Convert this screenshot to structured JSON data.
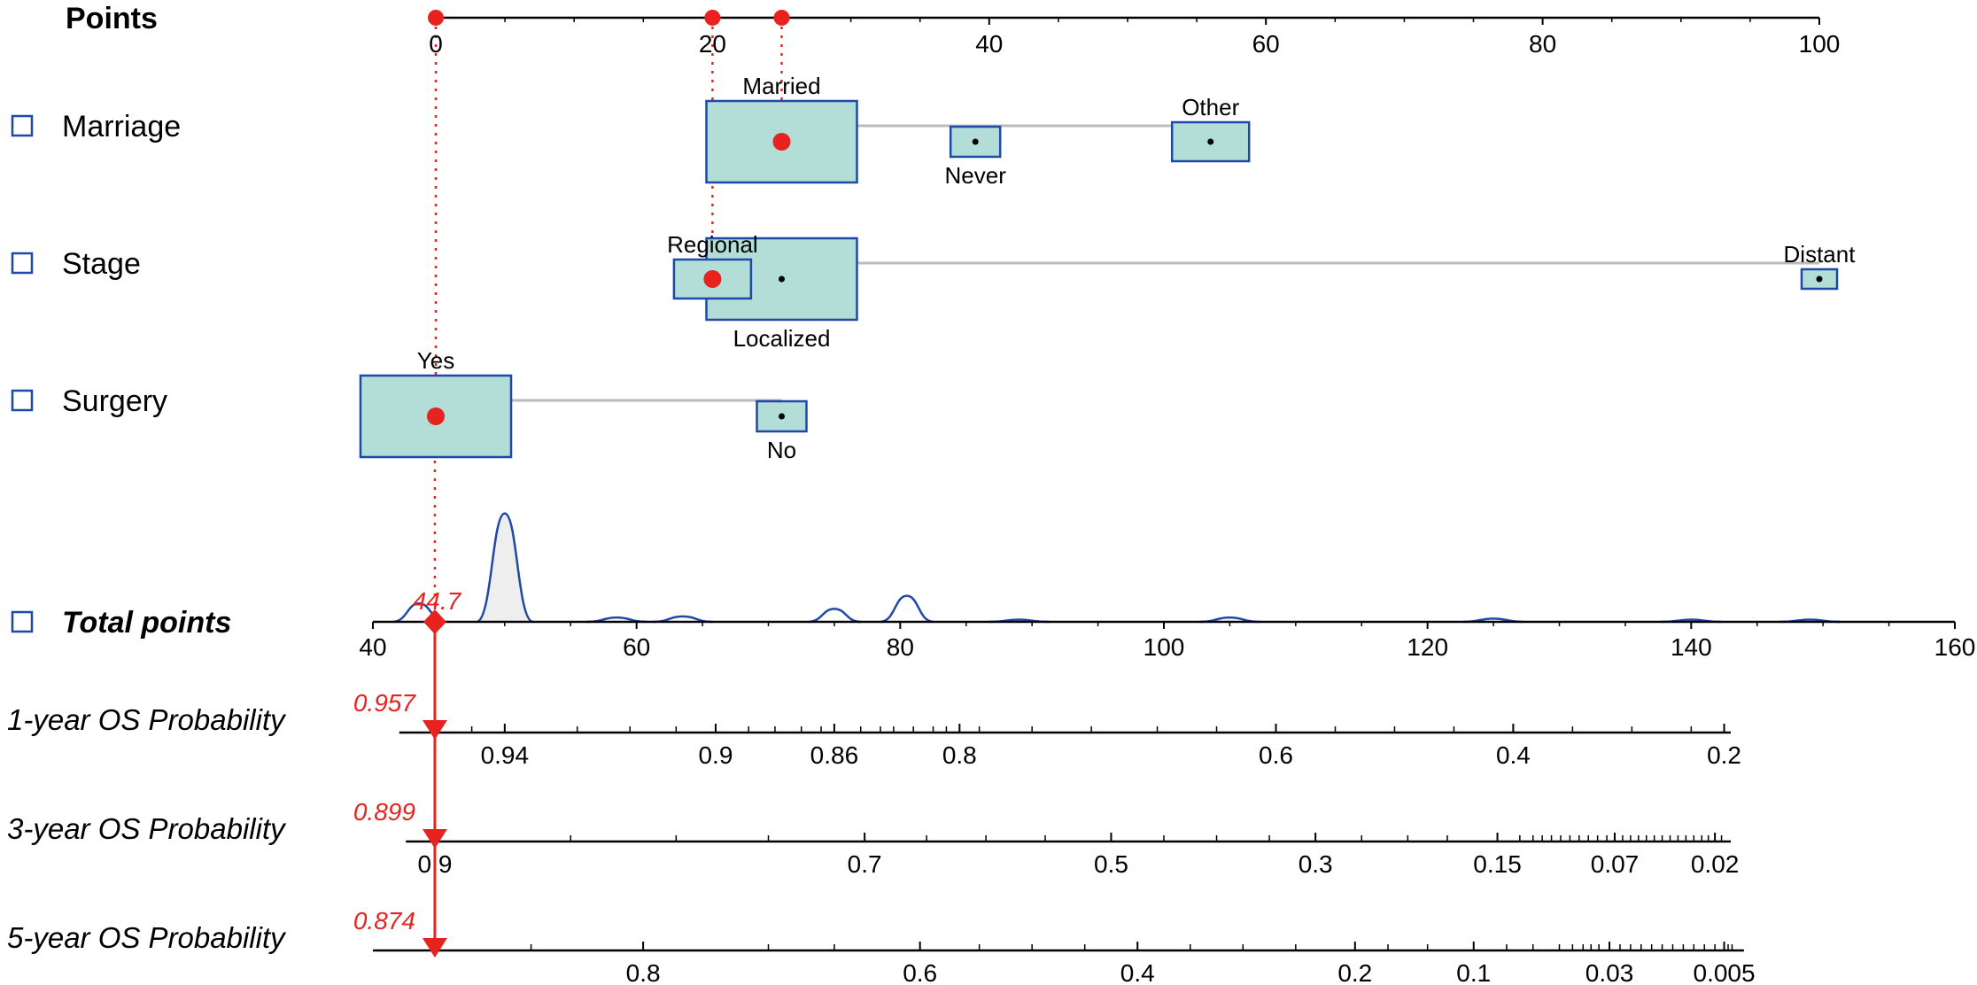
{
  "colors": {
    "box_fill": "#b3ded8",
    "box_stroke": "#1f48a8",
    "marker": "#e8231f",
    "axis": "#000000",
    "connector": "#bbbbbb",
    "density_fill": "#eeeeee",
    "checkbox": "#1f48a8"
  },
  "icons": {
    "row_checkbox": "unchecked-checkbox-icon",
    "selected_point": "red-dot-icon",
    "total_marker": "red-diamond-icon",
    "probability_marker": "red-down-triangle-icon"
  },
  "chart_data": {
    "type": "nomogram",
    "points_axis": {
      "label": "Points",
      "range": [
        0,
        100
      ],
      "ticks": [
        0,
        20,
        40,
        60,
        80,
        100
      ],
      "selected_points": [
        0,
        20,
        25
      ]
    },
    "variables": [
      {
        "name": "Marriage",
        "levels": [
          {
            "label": "Married",
            "points": 25,
            "label_pos": "above",
            "selected": true
          },
          {
            "label": "Never",
            "points": 39,
            "label_pos": "below",
            "selected": false
          },
          {
            "label": "Other",
            "points": 56,
            "label_pos": "above",
            "selected": false
          }
        ]
      },
      {
        "name": "Stage",
        "levels": [
          {
            "label": "Regional",
            "points": 20,
            "label_pos": "above",
            "selected": true
          },
          {
            "label": "Localized",
            "points": 25,
            "label_pos": "below",
            "selected": false
          },
          {
            "label": "Distant",
            "points": 100,
            "label_pos": "above",
            "selected": false
          }
        ]
      },
      {
        "name": "Surgery",
        "levels": [
          {
            "label": "Yes",
            "points": 0,
            "label_pos": "above",
            "selected": true
          },
          {
            "label": "No",
            "points": 25,
            "label_pos": "below",
            "selected": false
          }
        ]
      }
    ],
    "total_points": {
      "label": "Total points",
      "range": [
        40,
        160
      ],
      "ticks": [
        40,
        60,
        80,
        100,
        120,
        140,
        160
      ],
      "value": 44.7,
      "value_label": "44.7"
    },
    "probability_axes": [
      {
        "label": "1-year OS Probability",
        "value_label": "0.957",
        "tick_labels": [
          {
            "text": "0.94",
            "total": 50.0
          },
          {
            "text": "0.9",
            "total": 66.0
          },
          {
            "text": "0.86",
            "total": 75.0
          },
          {
            "text": "0.8",
            "total": 84.5
          },
          {
            "text": "0.6",
            "total": 108.5
          },
          {
            "text": "0.4",
            "total": 126.5
          },
          {
            "text": "0.2",
            "total": 142.5
          }
        ],
        "minor_ticks": [
          47.5,
          55.5,
          59.5,
          63.0,
          68.5,
          70.5,
          72.5,
          74.0,
          77.0,
          78.5,
          79.5,
          81.0,
          82.5,
          83.5,
          86.0,
          90.0,
          94.5,
          99.5,
          104.0,
          113.0,
          117.5,
          122.0,
          131.0,
          135.5,
          140.0
        ],
        "axis_range": [
          42.0,
          143.0
        ]
      },
      {
        "label": "3-year OS Probability",
        "value_label": "0.899",
        "tick_labels": [
          {
            "text": "0.9",
            "total": 44.7
          },
          {
            "text": "0.7",
            "total": 77.3
          },
          {
            "text": "0.5",
            "total": 96.0
          },
          {
            "text": "0.3",
            "total": 111.5
          },
          {
            "text": "0.15",
            "total": 125.3
          },
          {
            "text": "0.07",
            "total": 134.2
          },
          {
            "text": "0.02",
            "total": 141.8
          }
        ],
        "minor_ticks": [
          55.0,
          63.0,
          70.0,
          82.0,
          86.5,
          91.0,
          100.0,
          104.0,
          108.0,
          115.0,
          118.5,
          121.5,
          127.0,
          128.0,
          128.7,
          129.4,
          130.1,
          130.8,
          131.5,
          132.2,
          132.9,
          133.6,
          134.8,
          135.4,
          136.0,
          136.6,
          137.2,
          137.8,
          138.4,
          139.0,
          139.6,
          140.2,
          140.8,
          141.3,
          142.3
        ],
        "axis_range": [
          42.5,
          143.0
        ]
      },
      {
        "label": "5-year OS Probability",
        "value_label": "0.874",
        "tick_labels": [
          {
            "text": "0.8",
            "total": 60.5
          },
          {
            "text": "0.6",
            "total": 81.5
          },
          {
            "text": "0.4",
            "total": 98.0
          },
          {
            "text": "0.2",
            "total": 114.5
          },
          {
            "text": "0.1",
            "total": 123.5
          },
          {
            "text": "0.03",
            "total": 133.8
          },
          {
            "text": "0.005",
            "total": 142.5
          }
        ],
        "minor_ticks": [
          52.0,
          70.0,
          75.0,
          86.0,
          90.0,
          94.0,
          102.0,
          106.0,
          110.0,
          117.0,
          120.0,
          126.0,
          128.0,
          130.0,
          131.0,
          131.8,
          132.4,
          133.0,
          134.6,
          135.4,
          136.2,
          137.0,
          137.8,
          138.6,
          139.4,
          140.2,
          141.0,
          141.8,
          142.8,
          143.1
        ],
        "axis_range": [
          40.0,
          144.0
        ]
      }
    ],
    "total_density": {
      "shown": true,
      "peaks": [
        {
          "center": 43.5,
          "height": 0.17
        },
        {
          "center": 50.0,
          "height": 1.0
        },
        {
          "center": 58.5,
          "height": 0.04
        },
        {
          "center": 63.5,
          "height": 0.05
        },
        {
          "center": 75.0,
          "height": 0.12
        },
        {
          "center": 80.5,
          "height": 0.24
        },
        {
          "center": 89.0,
          "height": 0.02
        },
        {
          "center": 105.0,
          "height": 0.04
        },
        {
          "center": 125.0,
          "height": 0.03
        },
        {
          "center": 140.0,
          "height": 0.02
        },
        {
          "center": 149.0,
          "height": 0.02
        }
      ]
    }
  }
}
